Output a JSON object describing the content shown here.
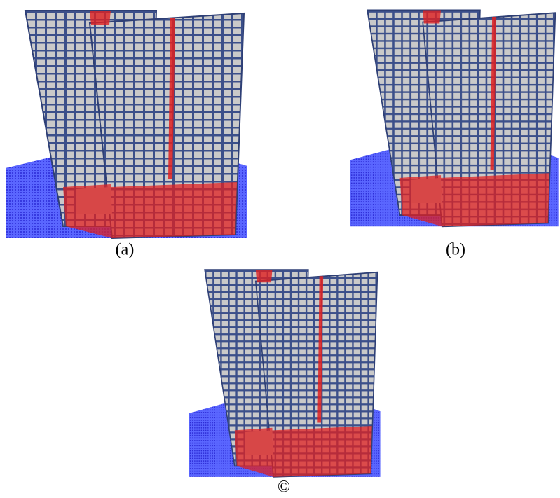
{
  "figures": [
    {
      "caption": "(a)"
    },
    {
      "caption": "(b)"
    },
    {
      "caption": "©"
    }
  ]
}
